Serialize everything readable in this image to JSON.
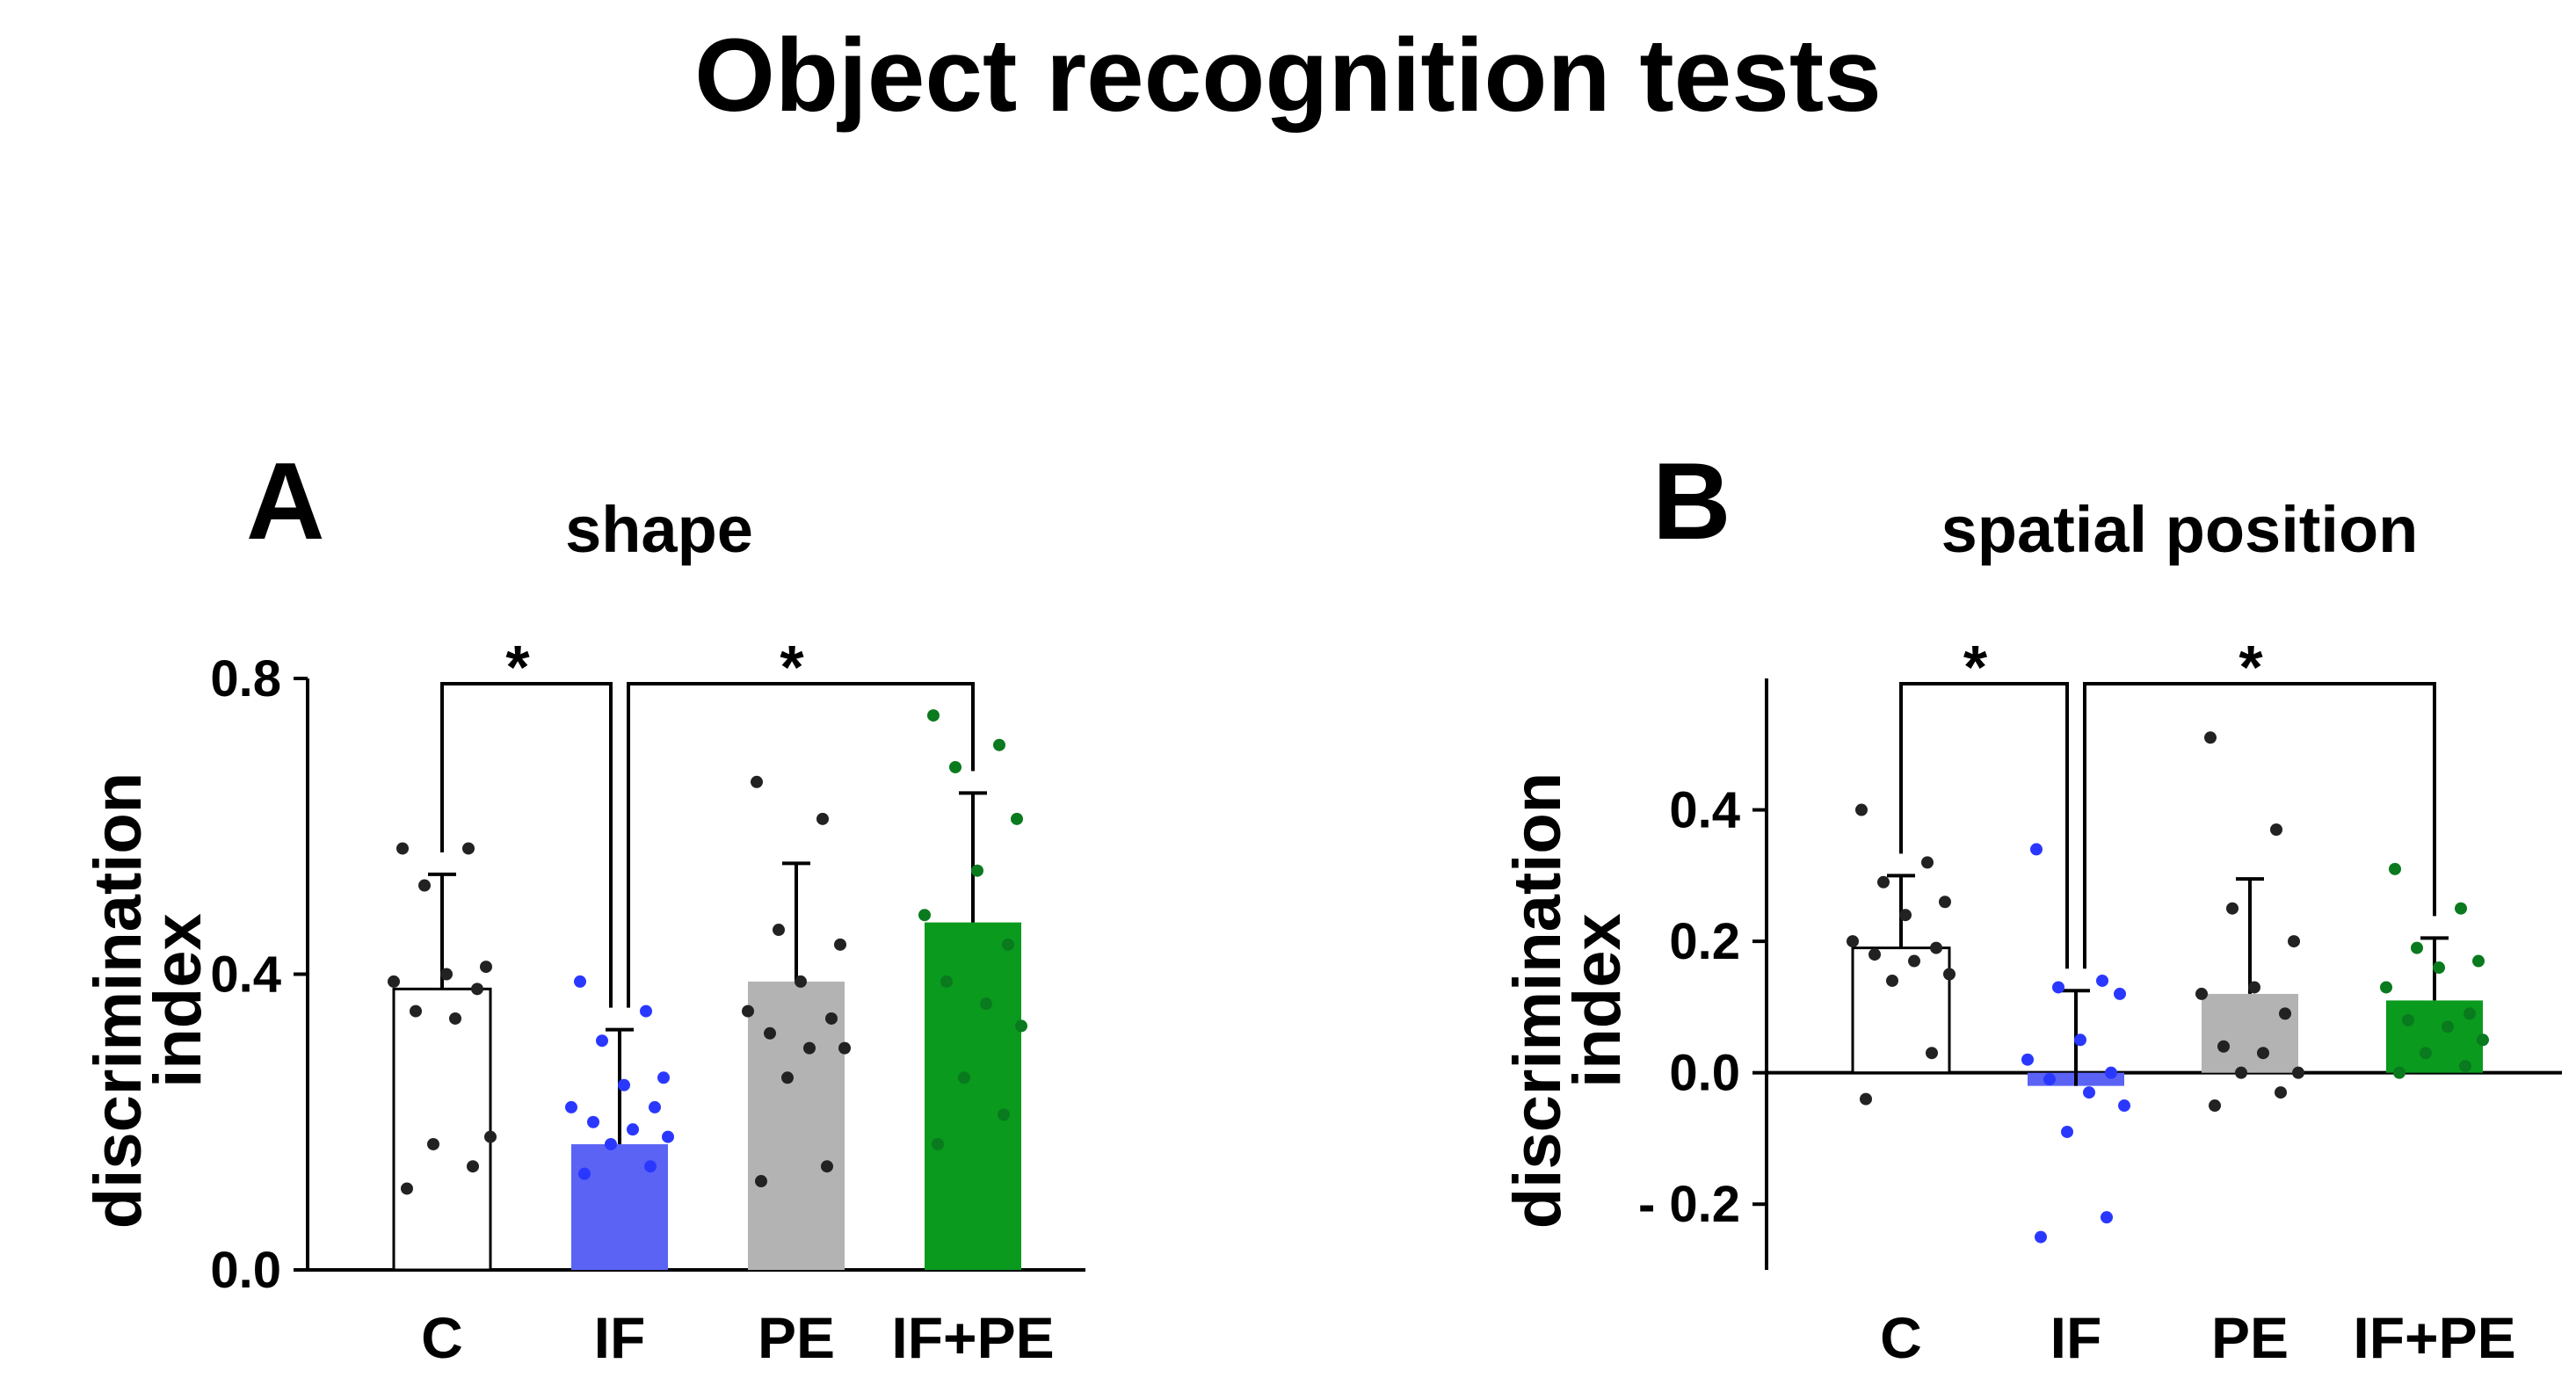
{
  "figure_title": "Object recognition tests",
  "panels": [
    {
      "letter": "A",
      "subtitle": "shape"
    },
    {
      "letter": "B",
      "subtitle": "spatial position"
    }
  ],
  "colors": {
    "C": "#ffffff",
    "IF": "#5b63f5",
    "PE": "#b3b3b3",
    "IF+PE": "#0a9a1e",
    "dots_C": "#222222",
    "dots_IF": "#2a38ff",
    "dots_PE": "#222222",
    "dots_IFPE": "#0a7a1e"
  },
  "chart_data": [
    {
      "type": "bar",
      "title": "shape",
      "ylabel_lines": [
        "discrimination",
        "index"
      ],
      "categories": [
        "C",
        "IF",
        "PE",
        "IF+PE"
      ],
      "values": [
        0.38,
        0.17,
        0.39,
        0.47
      ],
      "errors": [
        0.155,
        0.155,
        0.16,
        0.175
      ],
      "ylim": [
        0,
        0.8
      ],
      "yticks": [
        0.0,
        0.4,
        0.8
      ],
      "ytick_labels": [
        "0.0",
        "0.4",
        "0.8"
      ],
      "points": [
        [
          0.57,
          0.57,
          0.52,
          0.41,
          0.4,
          0.39,
          0.38,
          0.35,
          0.34,
          0.18,
          0.17,
          0.14,
          0.11
        ],
        [
          0.39,
          0.35,
          0.31,
          0.26,
          0.25,
          0.22,
          0.22,
          0.2,
          0.19,
          0.18,
          0.17,
          0.14,
          0.13
        ],
        [
          0.66,
          0.61,
          0.46,
          0.44,
          0.39,
          0.35,
          0.34,
          0.32,
          0.3,
          0.3,
          0.26,
          0.14,
          0.12
        ],
        [
          0.75,
          0.71,
          0.68,
          0.61,
          0.54,
          0.48,
          0.44,
          0.39,
          0.36,
          0.33,
          0.26,
          0.21,
          0.17
        ]
      ],
      "significance": [
        {
          "from": 0,
          "to": 1,
          "label": "*"
        },
        {
          "from": 1,
          "to": 3,
          "label": "*"
        }
      ]
    },
    {
      "type": "bar",
      "title": "spatial position",
      "ylabel_lines": [
        "discrimination",
        "index"
      ],
      "categories": [
        "C",
        "IF",
        "PE",
        "IF+PE"
      ],
      "values": [
        0.19,
        -0.02,
        0.12,
        0.11
      ],
      "errors": [
        0.11,
        0.145,
        0.175,
        0.095
      ],
      "ylim": [
        -0.3,
        0.6
      ],
      "yticks": [
        -0.2,
        0.0,
        0.2,
        0.4
      ],
      "ytick_labels": [
        "- 0.2",
        "0.0",
        "0.2",
        "0.4"
      ],
      "points": [
        [
          0.4,
          0.32,
          0.29,
          0.26,
          0.24,
          0.2,
          0.19,
          0.18,
          0.17,
          0.15,
          0.14,
          0.03,
          -0.04
        ],
        [
          0.34,
          0.14,
          0.13,
          0.12,
          0.05,
          0.02,
          0.0,
          -0.01,
          -0.03,
          -0.05,
          -0.09,
          -0.22,
          -0.25
        ],
        [
          0.51,
          0.37,
          0.25,
          0.2,
          0.13,
          0.12,
          0.09,
          0.04,
          0.03,
          0.0,
          0.0,
          -0.03,
          -0.05
        ],
        [
          0.31,
          0.25,
          0.19,
          0.17,
          0.16,
          0.13,
          0.09,
          0.08,
          0.07,
          0.05,
          0.03,
          0.01,
          0.0
        ]
      ],
      "significance": [
        {
          "from": 0,
          "to": 1,
          "label": "*"
        },
        {
          "from": 1,
          "to": 3,
          "label": "*"
        }
      ]
    }
  ]
}
